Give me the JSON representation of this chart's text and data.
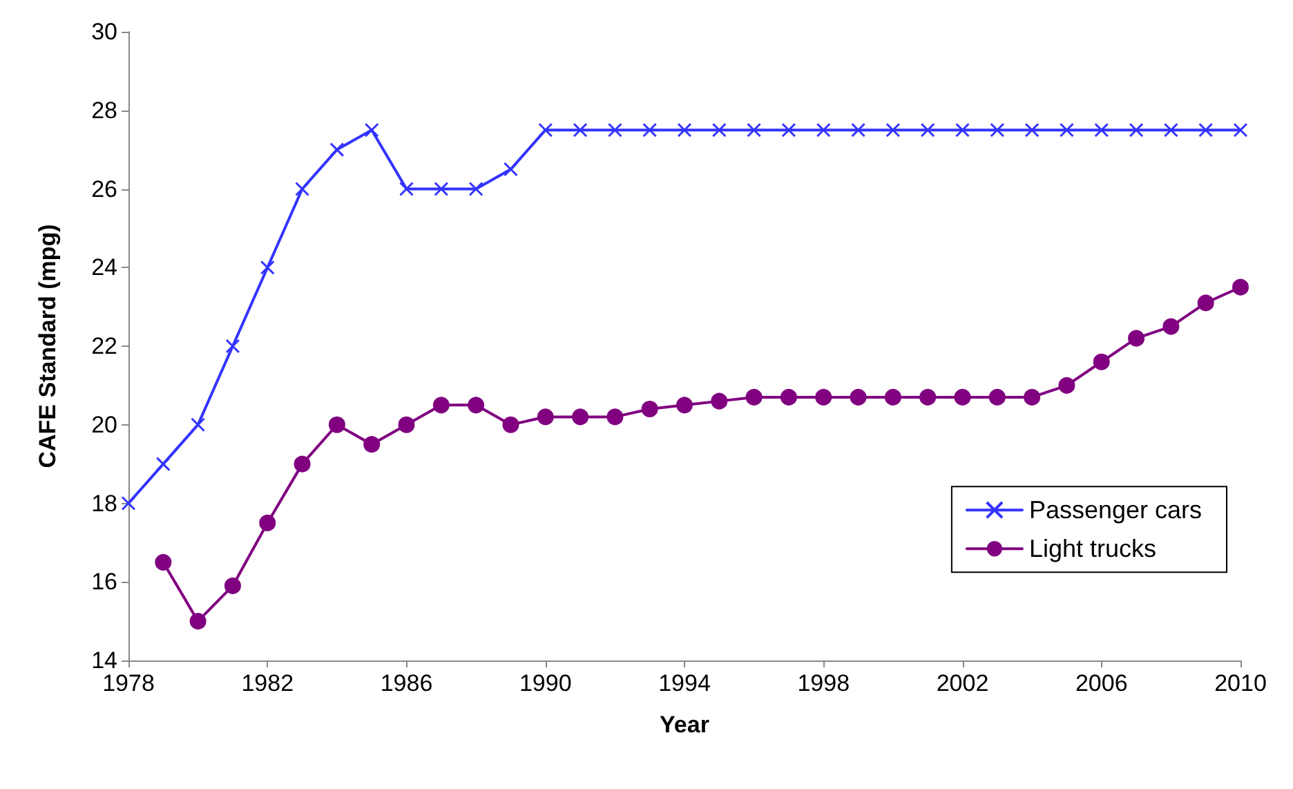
{
  "chart_data": {
    "type": "line",
    "xlabel": "Year",
    "ylabel": "CAFE Standard (mpg)",
    "xlim": [
      1978,
      2010
    ],
    "xticks": [
      1978,
      1982,
      1986,
      1990,
      1994,
      1998,
      2002,
      2006,
      2010
    ],
    "ylim": [
      14,
      30
    ],
    "yticks": [
      14,
      16,
      18,
      20,
      22,
      24,
      26,
      28,
      30
    ],
    "grid": false,
    "legend": "right",
    "series": [
      {
        "name": "Passenger cars",
        "color": "#3333ff",
        "marker": "cross",
        "x": [
          1978,
          1979,
          1980,
          1981,
          1982,
          1983,
          1984,
          1985,
          1986,
          1987,
          1988,
          1989,
          1990,
          1991,
          1992,
          1993,
          1994,
          1995,
          1996,
          1997,
          1998,
          1999,
          2000,
          2001,
          2002,
          2003,
          2004,
          2005,
          2006,
          2007,
          2008,
          2009,
          2010
        ],
        "values": [
          18,
          19,
          20,
          22,
          24,
          26,
          27,
          27.5,
          26,
          26,
          26,
          26.5,
          27.5,
          27.5,
          27.5,
          27.5,
          27.5,
          27.5,
          27.5,
          27.5,
          27.5,
          27.5,
          27.5,
          27.5,
          27.5,
          27.5,
          27.5,
          27.5,
          27.5,
          27.5,
          27.5,
          27.5,
          27.5
        ]
      },
      {
        "name": "Light trucks",
        "color": "#800080",
        "marker": "circle",
        "x": [
          1979,
          1980,
          1981,
          1982,
          1983,
          1984,
          1985,
          1986,
          1987,
          1988,
          1989,
          1990,
          1991,
          1992,
          1993,
          1994,
          1995,
          1996,
          1997,
          1998,
          1999,
          2000,
          2001,
          2002,
          2003,
          2004,
          2005,
          2006,
          2007,
          2008,
          2009,
          2010
        ],
        "values": [
          16.5,
          15,
          15.9,
          17.5,
          19,
          20,
          19.5,
          20,
          20.5,
          20.5,
          20,
          20.2,
          20.2,
          20.2,
          20.4,
          20.5,
          20.6,
          20.7,
          20.7,
          20.7,
          20.7,
          20.7,
          20.7,
          20.7,
          20.7,
          20.7,
          21,
          21.6,
          22.2,
          22.5,
          23.1,
          23.5
        ]
      }
    ]
  }
}
